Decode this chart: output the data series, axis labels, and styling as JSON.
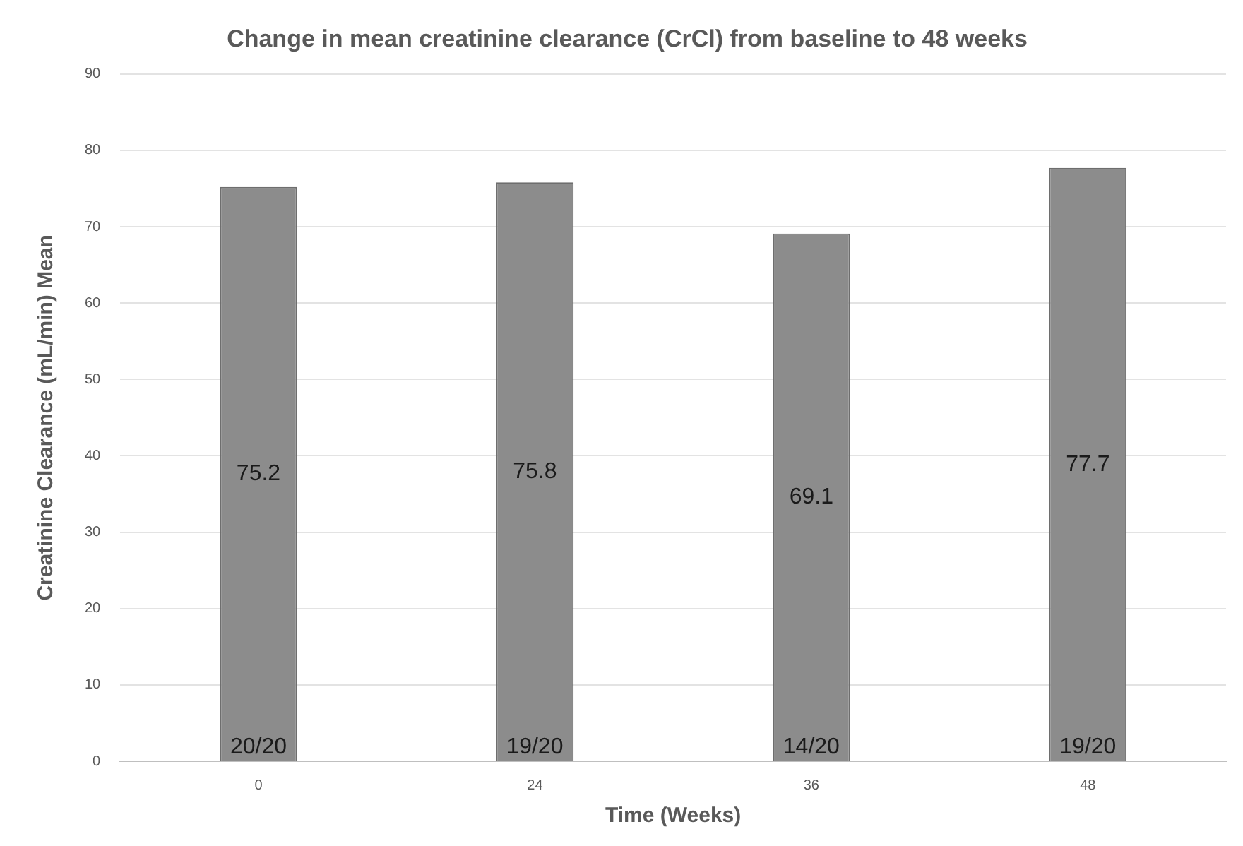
{
  "chart_data": {
    "type": "bar",
    "title": "Change in mean creatinine clearance (CrCl) from baseline to 48 weeks",
    "xlabel": "Time (Weeks)",
    "ylabel": "Creatinine Clearance (mL/min) Mean",
    "categories": [
      "0",
      "24",
      "36",
      "48"
    ],
    "values": [
      75.2,
      75.8,
      69.1,
      77.7
    ],
    "color": "#8c8c8c",
    "ylim": [
      0,
      90
    ],
    "yticks": [
      0,
      10,
      20,
      30,
      40,
      50,
      60,
      70,
      80,
      90
    ],
    "grid": "y",
    "data_labels": true,
    "annotations": [
      {
        "text": "20/20",
        "x": "0",
        "y": 0
      },
      {
        "text": "19/20",
        "x": "24",
        "y": 0
      },
      {
        "text": "14/20",
        "x": "36",
        "y": 0
      },
      {
        "text": "19/20",
        "x": "48",
        "y": 0
      }
    ]
  }
}
